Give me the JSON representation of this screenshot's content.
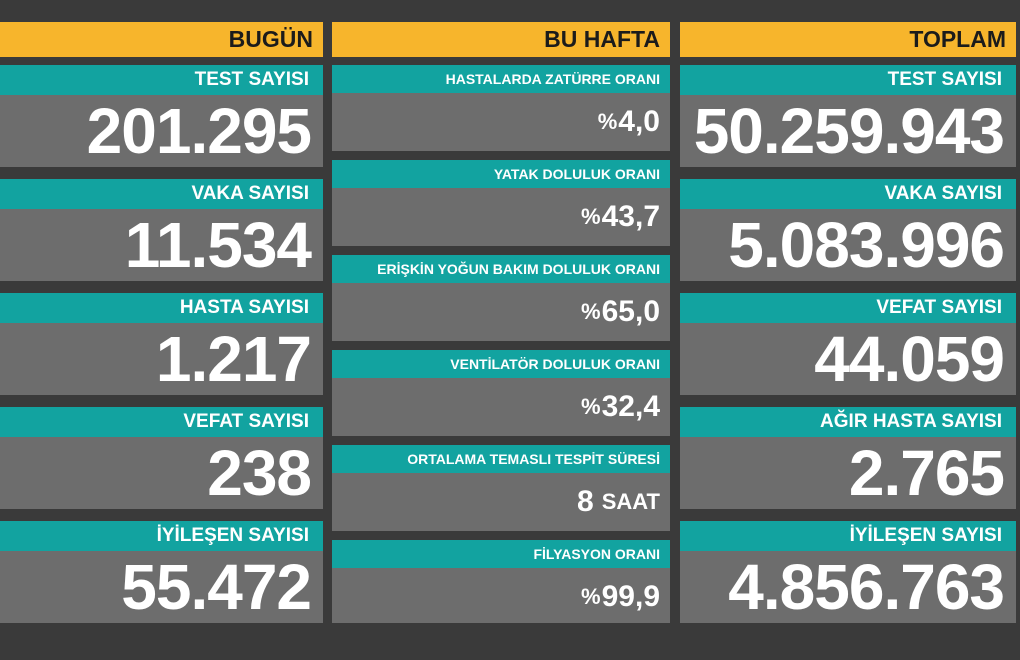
{
  "today": {
    "header": "BUGÜN",
    "items": [
      {
        "label": "TEST SAYISI",
        "value": "201.295"
      },
      {
        "label": "VAKA SAYISI",
        "value": "11.534"
      },
      {
        "label": "HASTA SAYISI",
        "value": "1.217"
      },
      {
        "label": "VEFAT SAYISI",
        "value": "238"
      },
      {
        "label": "İYİLEŞEN SAYISI",
        "value": "55.472"
      }
    ]
  },
  "week": {
    "header": "BU HAFTA",
    "items": [
      {
        "label": "HASTALARDA ZATÜRRE ORANI",
        "prefix": "%",
        "value": "4,0"
      },
      {
        "label": "YATAK DOLULUK ORANI",
        "prefix": "%",
        "value": "43,7"
      },
      {
        "label": "ERİŞKİN YOĞUN BAKIM DOLULUK ORANI",
        "prefix": "%",
        "value": "65,0"
      },
      {
        "label": "VENTİLATÖR DOLULUK ORANI",
        "prefix": "%",
        "value": "32,4"
      },
      {
        "label": "ORTALAMA TEMASLI TESPİT SÜRESİ",
        "value": "8",
        "unit": "SAAT"
      },
      {
        "label": "FİLYASYON ORANI",
        "prefix": "%",
        "value": "99,9"
      }
    ]
  },
  "total": {
    "header": "TOPLAM",
    "items": [
      {
        "label": "TEST SAYISI",
        "value": "50.259.943"
      },
      {
        "label": "VAKA SAYISI",
        "value": "5.083.996"
      },
      {
        "label": "VEFAT SAYISI",
        "value": "44.059"
      },
      {
        "label": "AĞIR HASTA SAYISI",
        "value": "2.765"
      },
      {
        "label": "İYİLEŞEN SAYISI",
        "value": "4.856.763"
      }
    ]
  },
  "colors": {
    "header": "#f7b52c",
    "label": "#12a3a0",
    "panel": "#6d6d6d",
    "background": "#3a3a3a"
  }
}
